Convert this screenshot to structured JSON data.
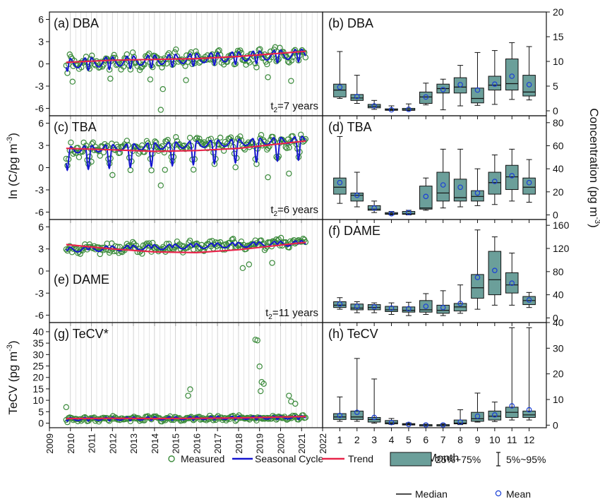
{
  "colors": {
    "measured": "#3a8a3a",
    "seasonal": "#1515d0",
    "trend": "#e8244a",
    "box_fill": "#6b9f9a",
    "mean_marker": "#1a3fd6",
    "grid": "#c8c8c8"
  },
  "axis_labels": {
    "left_ln": "ln (C/pg m",
    "left_ln_sup": "-3",
    "left_tecv": "TeCV (pg m",
    "left_tecv_sup": "-3",
    "right": "Concentration (pg m",
    "right_sup": "-3",
    "bottom_right": "Month"
  },
  "legend": {
    "measured": "Measured",
    "seasonal": "Seasonal Cycle",
    "trend": "Trend",
    "box": "25%~75%",
    "whisker": "5%~95%",
    "median": "Median",
    "mean": "Mean"
  },
  "chart_data": [
    {
      "type": "scatter",
      "panel": "(a) DBA",
      "title": "(a) DBA",
      "annotation": {
        "pre": "t",
        "sub": "2",
        "post": "=7 years"
      },
      "xlim": [
        2009,
        2022
      ],
      "ylim": [
        -7,
        7
      ],
      "x_ticks": [
        2009,
        2010,
        2011,
        2012,
        2013,
        2014,
        2015,
        2016,
        2017,
        2018,
        2019,
        2020,
        2021,
        2022
      ],
      "y_ticks": [
        -6,
        -3,
        0,
        3,
        6
      ],
      "seasonal": {
        "base_start": 0.3,
        "base_end": 1.6,
        "amp": 1.6,
        "dip": 2.4
      },
      "trend": [
        [
          2009.8,
          0.2
        ],
        [
          2012,
          0.5
        ],
        [
          2014,
          0.6
        ],
        [
          2016,
          0.7
        ],
        [
          2018,
          1.0
        ],
        [
          2021.2,
          1.7
        ]
      ],
      "outliers": [
        [
          2010.1,
          -2.4
        ],
        [
          2011.9,
          -2.0
        ],
        [
          2013.8,
          -2.1
        ],
        [
          2014.3,
          -6.2
        ],
        [
          2014.4,
          -3.4
        ],
        [
          2015.5,
          -2.2
        ],
        [
          2019.4,
          -1.8
        ],
        [
          2020.5,
          -2.3
        ]
      ]
    },
    {
      "type": "box",
      "panel": "(b) DBA",
      "title": "(b) DBA",
      "categories": [
        "1",
        "2",
        "3",
        "4",
        "5",
        "6",
        "7",
        "8",
        "9",
        "10",
        "11",
        "12"
      ],
      "ylim": [
        -1,
        20
      ],
      "y_ticks": [
        0,
        5,
        10,
        15,
        20
      ],
      "boxes": [
        {
          "p5": 2.5,
          "q1": 2.8,
          "median": 4.2,
          "q3": 5.4,
          "p95": 12.0,
          "mean": 4.8
        },
        {
          "p5": 1.5,
          "q1": 2.1,
          "median": 2.6,
          "q3": 3.3,
          "p95": 7.2,
          "mean": 2.9
        },
        {
          "p5": 0.3,
          "q1": 0.6,
          "median": 0.9,
          "q3": 1.3,
          "p95": 2.1,
          "mean": 1.0
        },
        {
          "p5": 0.05,
          "q1": 0.1,
          "median": 0.2,
          "q3": 0.4,
          "p95": 1.0,
          "mean": 0.2
        },
        {
          "p5": 0.05,
          "q1": 0.1,
          "median": 0.2,
          "q3": 0.5,
          "p95": 1.4,
          "mean": 0.3
        },
        {
          "p5": 1.2,
          "q1": 1.5,
          "median": 2.8,
          "q3": 3.8,
          "p95": 5.6,
          "mean": 2.8
        },
        {
          "p5": 0.2,
          "q1": 3.6,
          "median": 4.5,
          "q3": 5.4,
          "p95": 6.4,
          "mean": 4.3
        },
        {
          "p5": 1.0,
          "q1": 3.6,
          "median": 4.8,
          "q3": 6.7,
          "p95": 9.2,
          "mean": 5.3
        },
        {
          "p5": 1.1,
          "q1": 1.6,
          "median": 2.5,
          "q3": 4.6,
          "p95": 11.8,
          "mean": 4.2
        },
        {
          "p5": 1.3,
          "q1": 4.2,
          "median": 5.2,
          "q3": 7.0,
          "p95": 12.2,
          "mean": 5.4
        },
        {
          "p5": 2.3,
          "q1": 4.2,
          "median": 5.5,
          "q3": 10.5,
          "p95": 13.8,
          "mean": 7.0
        },
        {
          "p5": 2.2,
          "q1": 3.0,
          "median": 3.8,
          "q3": 7.2,
          "p95": 13.0,
          "mean": 5.3
        }
      ]
    },
    {
      "type": "scatter",
      "panel": "(c) TBA",
      "title": "(c) TBA",
      "annotation": {
        "pre": "t",
        "sub": "2",
        "post": "=6 years"
      },
      "xlim": [
        2009,
        2022
      ],
      "ylim": [
        -7,
        7
      ],
      "x_ticks": [
        2009,
        2010,
        2011,
        2012,
        2013,
        2014,
        2015,
        2016,
        2017,
        2018,
        2019,
        2020,
        2021,
        2022
      ],
      "y_ticks": [
        -6,
        -3,
        0,
        3,
        6
      ],
      "seasonal": {
        "base_start": 2.6,
        "base_end": 4.0,
        "amp": 1.2,
        "dip": 4.0
      },
      "trend": [
        [
          2009.8,
          2.6
        ],
        [
          2012,
          2.4
        ],
        [
          2014,
          2.2
        ],
        [
          2016,
          2.3
        ],
        [
          2018,
          2.6
        ],
        [
          2021.2,
          3.6
        ]
      ],
      "outliers": [
        [
          2012.0,
          -1.0
        ],
        [
          2014.3,
          -2.4
        ],
        [
          2014.5,
          -0.3
        ],
        [
          2019.4,
          -1.3
        ],
        [
          2020.4,
          -0.8
        ],
        [
          2011.0,
          0.8
        ]
      ]
    },
    {
      "type": "box",
      "panel": "(d) TBA",
      "title": "(d) TBA",
      "categories": [
        "1",
        "2",
        "3",
        "4",
        "5",
        "6",
        "7",
        "8",
        "9",
        "10",
        "11",
        "12"
      ],
      "ylim": [
        -4,
        86
      ],
      "y_ticks": [
        0,
        20,
        40,
        60,
        80
      ],
      "boxes": [
        {
          "p5": 10,
          "q1": 18,
          "median": 24,
          "q3": 32,
          "p95": 68,
          "mean": 28
        },
        {
          "p5": 7,
          "q1": 12,
          "median": 17,
          "q3": 19,
          "p95": 37,
          "mean": 17
        },
        {
          "p5": 2,
          "q1": 4,
          "median": 5,
          "q3": 8,
          "p95": 12,
          "mean": 6
        },
        {
          "p5": 0,
          "q1": 0.5,
          "median": 1,
          "q3": 2,
          "p95": 3,
          "mean": 1
        },
        {
          "p5": 0,
          "q1": 0.5,
          "median": 1,
          "q3": 3,
          "p95": 4,
          "mean": 2
        },
        {
          "p5": 4,
          "q1": 5,
          "median": 6,
          "q3": 25,
          "p95": 32,
          "mean": 16
        },
        {
          "p5": 6,
          "q1": 12,
          "median": 19,
          "q3": 37,
          "p95": 57,
          "mean": 26
        },
        {
          "p5": 7,
          "q1": 12,
          "median": 15,
          "q3": 31,
          "p95": 57,
          "mean": 24
        },
        {
          "p5": 8,
          "q1": 12,
          "median": 16,
          "q3": 21,
          "p95": 40,
          "mean": 19
        },
        {
          "p5": 9,
          "q1": 18,
          "median": 28,
          "q3": 37,
          "p95": 52,
          "mean": 29
        },
        {
          "p5": 12,
          "q1": 22,
          "median": 33,
          "q3": 43,
          "p95": 57,
          "mean": 34
        },
        {
          "p5": 11,
          "q1": 18,
          "median": 24,
          "q3": 32,
          "p95": 48,
          "mean": 28
        }
      ]
    },
    {
      "type": "scatter",
      "panel": "(e) DAME",
      "title": "(e) DAME",
      "annotation": {
        "pre": "t",
        "sub": "2",
        "post": "=11 years"
      },
      "xlim": [
        2009,
        2022
      ],
      "ylim": [
        -7,
        7
      ],
      "x_ticks": [
        2009,
        2010,
        2011,
        2012,
        2013,
        2014,
        2015,
        2016,
        2017,
        2018,
        2019,
        2020,
        2021,
        2022
      ],
      "y_ticks": [
        -6,
        -3,
        0,
        3,
        6
      ],
      "seasonal": {
        "base_start": 3.0,
        "base_end": 3.9,
        "amp": 0.8,
        "dip": 0.7
      },
      "trend": [
        [
          2009.8,
          3.6
        ],
        [
          2012,
          3.0
        ],
        [
          2014,
          2.6
        ],
        [
          2016,
          2.5
        ],
        [
          2018,
          2.9
        ],
        [
          2021.2,
          3.9
        ]
      ],
      "outliers": [
        [
          2018.2,
          0.4
        ],
        [
          2018.5,
          0.9
        ],
        [
          2019.6,
          1.1
        ]
      ]
    },
    {
      "type": "box",
      "panel": "(f) DAME",
      "title": "(f) DAME",
      "categories": [
        "1",
        "2",
        "3",
        "4",
        "5",
        "6",
        "7",
        "8",
        "9",
        "10",
        "11",
        "12"
      ],
      "ylim": [
        -8,
        170
      ],
      "y_ticks": [
        0,
        40,
        80,
        120,
        160
      ],
      "boxes": [
        {
          "p5": 15,
          "q1": 18,
          "median": 22,
          "q3": 28,
          "p95": 35,
          "mean": 24
        },
        {
          "p5": 9,
          "q1": 14,
          "median": 17,
          "q3": 24,
          "p95": 28,
          "mean": 20
        },
        {
          "p5": 9,
          "q1": 14,
          "median": 18,
          "q3": 23,
          "p95": 26,
          "mean": 19
        },
        {
          "p5": 6,
          "q1": 11,
          "median": 14,
          "q3": 20,
          "p95": 26,
          "mean": 17
        },
        {
          "p5": 4,
          "q1": 10,
          "median": 13,
          "q3": 19,
          "p95": 27,
          "mean": 16
        },
        {
          "p5": 6,
          "q1": 10,
          "median": 14,
          "q3": 30,
          "p95": 42,
          "mean": 20
        },
        {
          "p5": 4,
          "q1": 8,
          "median": 13,
          "q3": 22,
          "p95": 47,
          "mean": 18
        },
        {
          "p5": 8,
          "q1": 12,
          "median": 19,
          "q3": 25,
          "p95": 57,
          "mean": 25
        },
        {
          "p5": 15,
          "q1": 34,
          "median": 52,
          "q3": 75,
          "p95": 152,
          "mean": 70
        },
        {
          "p5": 22,
          "q1": 40,
          "median": 66,
          "q3": 115,
          "p95": 140,
          "mean": 82
        },
        {
          "p5": 22,
          "q1": 43,
          "median": 57,
          "q3": 78,
          "p95": 112,
          "mean": 60
        },
        {
          "p5": 18,
          "q1": 23,
          "median": 30,
          "q3": 37,
          "p95": 44,
          "mean": 31
        }
      ]
    },
    {
      "type": "scatter",
      "panel": "(g) TeCV*",
      "title": "(g) TeCV*",
      "xlim": [
        2009,
        2022
      ],
      "ylim": [
        -2,
        44
      ],
      "x_ticks": [
        2009,
        2010,
        2011,
        2012,
        2013,
        2014,
        2015,
        2016,
        2017,
        2018,
        2019,
        2020,
        2021,
        2022
      ],
      "y_ticks": [
        0,
        5,
        10,
        15,
        20,
        25,
        30,
        35,
        40
      ],
      "seasonal": {
        "base_start": 2.0,
        "base_end": 2.8,
        "amp": 1.6,
        "dip": 2.2
      },
      "trend": [
        [
          2009.8,
          2.0
        ],
        [
          2012,
          2.1
        ],
        [
          2014,
          2.0
        ],
        [
          2016,
          2.1
        ],
        [
          2018,
          2.3
        ],
        [
          2021.2,
          2.9
        ]
      ],
      "outliers": [
        [
          2009.8,
          7.0
        ],
        [
          2015.6,
          12.0
        ],
        [
          2015.7,
          14.8
        ],
        [
          2018.8,
          36.5
        ],
        [
          2018.9,
          36.2
        ],
        [
          2019.0,
          24.8
        ],
        [
          2019.1,
          18.0
        ],
        [
          2019.2,
          17.2
        ],
        [
          2019.05,
          14.0
        ],
        [
          2020.4,
          12.0
        ],
        [
          2020.5,
          9.5
        ],
        [
          2020.7,
          8.5
        ]
      ]
    },
    {
      "type": "box",
      "panel": "(h) TeCV",
      "title": "(h) TeCV",
      "categories": [
        "1",
        "2",
        "3",
        "4",
        "5",
        "6",
        "7",
        "8",
        "9",
        "10",
        "11",
        "12"
      ],
      "ylim": [
        -1,
        40
      ],
      "y_ticks": [
        0,
        10,
        20,
        30,
        40
      ],
      "boxes": [
        {
          "p5": 1.5,
          "q1": 2.2,
          "median": 3.2,
          "q3": 4.5,
          "p95": 11.0,
          "mean": 3.8
        },
        {
          "p5": 1.5,
          "q1": 2.2,
          "median": 3.2,
          "q3": 5.5,
          "p95": 26.0,
          "mean": 5.0
        },
        {
          "p5": 0.8,
          "q1": 1.2,
          "median": 2.2,
          "q3": 3.0,
          "p95": 18.0,
          "mean": 3.0
        },
        {
          "p5": 0.3,
          "q1": 0.5,
          "median": 0.9,
          "q3": 1.8,
          "p95": 2.6,
          "mean": 1.0
        },
        {
          "p5": 0.1,
          "q1": 0.2,
          "median": 0.3,
          "q3": 0.6,
          "p95": 0.9,
          "mean": 0.3
        },
        {
          "p5": 0.0,
          "q1": 0.05,
          "median": 0.1,
          "q3": 0.2,
          "p95": 0.4,
          "mean": 0.1
        },
        {
          "p5": 0.0,
          "q1": 0.05,
          "median": 0.1,
          "q3": 0.2,
          "p95": 0.5,
          "mean": 0.1
        },
        {
          "p5": 0.2,
          "q1": 0.5,
          "median": 0.8,
          "q3": 2.0,
          "p95": 6.0,
          "mean": 1.2
        },
        {
          "p5": 1.2,
          "q1": 1.5,
          "median": 2.5,
          "q3": 5.0,
          "p95": 12.5,
          "mean": 3.5
        },
        {
          "p5": 1.4,
          "q1": 2.0,
          "median": 3.5,
          "q3": 5.5,
          "p95": 9.0,
          "mean": 4.0
        },
        {
          "p5": 2.0,
          "q1": 3.0,
          "median": 5.0,
          "q3": 7.0,
          "p95": 38.0,
          "mean": 7.5
        },
        {
          "p5": 2.0,
          "q1": 3.0,
          "median": 4.0,
          "q3": 5.5,
          "p95": 38.0,
          "mean": 6.0
        }
      ]
    }
  ]
}
